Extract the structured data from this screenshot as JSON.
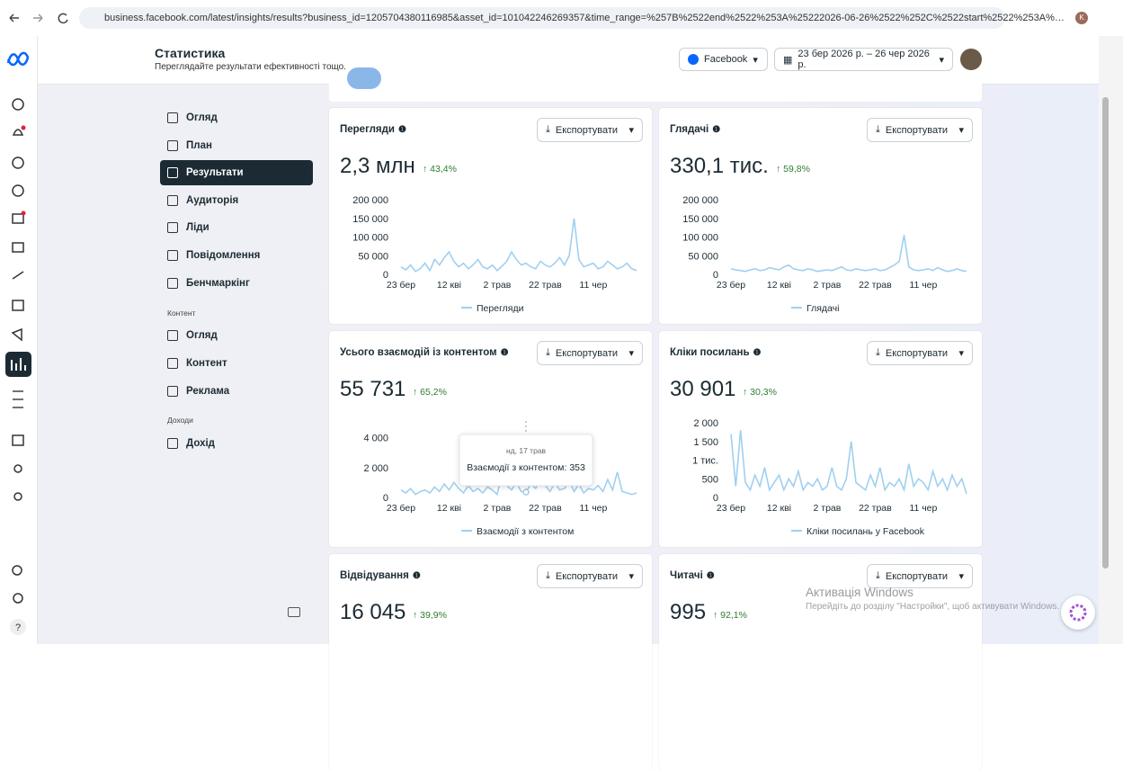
{
  "browser": {
    "url": "business.facebook.com/latest/insights/results?business_id=1205704380116985&asset_id=101042246269357&time_range=%257B%2522end%2522%253A%25222026-06-26%2522%252C%2522start%2522%253A%…",
    "profile": "K"
  },
  "header": {
    "title": "Статистика",
    "subtitle": "Переглядайте результати ефективності тощо.",
    "platform": "Facebook",
    "date_range": "23 бер 2026 р. – 26 чер 2026 р."
  },
  "nav": {
    "items": [
      "Огляд",
      "План",
      "Результати",
      "Аудиторія",
      "Ліди",
      "Повідомлення",
      "Бенчмаркінг"
    ],
    "content_section": "Контент",
    "content_items": [
      "Огляд",
      "Контент",
      "Реклама"
    ],
    "income_section": "Доходи",
    "income_items": [
      "Дохід"
    ]
  },
  "export_label": "Експортувати",
  "chart_data": [
    {
      "type": "line",
      "title": "Перегляди",
      "total": "2,3 млн",
      "change": "43,4%",
      "categories": [
        "23 бер",
        null,
        null,
        null,
        null,
        null,
        null,
        null,
        null,
        null,
        "12 кві",
        null,
        null,
        null,
        null,
        null,
        null,
        null,
        null,
        null,
        "2 трав",
        null,
        null,
        null,
        null,
        null,
        null,
        null,
        null,
        null,
        "22 трав",
        null,
        null,
        null,
        null,
        null,
        null,
        null,
        null,
        null,
        "11 чер",
        null,
        null,
        null,
        null,
        null,
        null,
        null,
        null,
        null
      ],
      "ylim": [
        0,
        200000
      ],
      "yticks": [
        0,
        {
          "value": 50000,
          "label": "50 000"
        },
        {
          "value": 100000,
          "label": "100 000"
        },
        {
          "value": 150000,
          "label": "150 000"
        },
        {
          "value": 200000,
          "label": "200 000"
        }
      ],
      "series": [
        {
          "name": "Перегляди",
          "color": "#9fd0f0",
          "values": [
            20000,
            12000,
            25000,
            8000,
            15000,
            30000,
            10000,
            40000,
            25000,
            45000,
            60000,
            35000,
            20000,
            30000,
            15000,
            25000,
            40000,
            20000,
            15000,
            25000,
            10000,
            22000,
            35000,
            60000,
            40000,
            25000,
            30000,
            20000,
            15000,
            35000,
            25000,
            20000,
            30000,
            45000,
            25000,
            50000,
            150000,
            40000,
            20000,
            25000,
            30000,
            15000,
            20000,
            35000,
            25000,
            15000,
            20000,
            30000,
            15000,
            10000
          ]
        }
      ]
    },
    {
      "type": "line",
      "title": "Глядачі",
      "total": "330,1 тис.",
      "change": "59,8%",
      "categories": [
        "23 бер",
        null,
        null,
        null,
        null,
        null,
        null,
        null,
        null,
        null,
        "12 кві",
        null,
        null,
        null,
        null,
        null,
        null,
        null,
        null,
        null,
        "2 трав",
        null,
        null,
        null,
        null,
        null,
        null,
        null,
        null,
        null,
        "22 трав",
        null,
        null,
        null,
        null,
        null,
        null,
        null,
        null,
        null,
        "11 чер",
        null,
        null,
        null,
        null,
        null,
        null,
        null,
        null,
        null
      ],
      "ylim": [
        0,
        200000
      ],
      "yticks": [
        0,
        {
          "value": 50000,
          "label": "50 000"
        },
        {
          "value": 100000,
          "label": "100 000"
        },
        {
          "value": 150000,
          "label": "150 000"
        },
        {
          "value": 200000,
          "label": "200 000"
        }
      ],
      "series": [
        {
          "name": "Глядачі",
          "color": "#9fd0f0",
          "values": [
            15000,
            12000,
            10000,
            8000,
            12000,
            15000,
            10000,
            12000,
            18000,
            15000,
            12000,
            20000,
            25000,
            15000,
            12000,
            10000,
            15000,
            12000,
            8000,
            10000,
            12000,
            10000,
            15000,
            20000,
            12000,
            10000,
            15000,
            12000,
            10000,
            12000,
            15000,
            10000,
            12000,
            18000,
            25000,
            35000,
            105000,
            20000,
            12000,
            10000,
            12000,
            15000,
            10000,
            18000,
            12000,
            8000,
            10000,
            15000,
            10000,
            8000
          ]
        }
      ]
    },
    {
      "type": "line",
      "title": "Усього взаємодій із контентом",
      "total": "55 731",
      "change": "65,2%",
      "categories": [
        "23 бер",
        null,
        null,
        null,
        null,
        null,
        null,
        null,
        null,
        null,
        "12 кві",
        null,
        null,
        null,
        null,
        null,
        null,
        null,
        null,
        null,
        "2 трав",
        null,
        null,
        null,
        null,
        null,
        null,
        null,
        null,
        null,
        "22 трав",
        null,
        null,
        null,
        null,
        null,
        null,
        null,
        null,
        null,
        "11 чер",
        null,
        null,
        null,
        null,
        null,
        null,
        null,
        null,
        null
      ],
      "ylim": [
        0,
        5000
      ],
      "yticks": [
        0,
        {
          "value": 2000,
          "label": "2 000"
        },
        {
          "value": 4000,
          "label": "4 000"
        }
      ],
      "series": [
        {
          "name": "Взаємодії з контентом",
          "color": "#9fd0f0",
          "values": [
            500,
            300,
            600,
            200,
            400,
            500,
            300,
            700,
            400,
            900,
            500,
            1000,
            600,
            300,
            800,
            400,
            600,
            300,
            700,
            500,
            200,
            1600,
            800,
            500,
            1000,
            400,
            353,
            900,
            600,
            1200,
            800,
            400,
            1000,
            500,
            600,
            1100,
            400,
            900,
            300,
            600,
            500,
            800,
            400,
            1200,
            500,
            1700,
            400,
            300,
            200,
            300
          ]
        }
      ],
      "tooltip": {
        "index": 26,
        "date": "нд, 17 трав",
        "text": "Взаємодії з контентом: 353"
      }
    },
    {
      "type": "line",
      "title": "Кліки посилань",
      "total": "30 901",
      "change": "30,3%",
      "categories": [
        "23 бер",
        null,
        null,
        null,
        null,
        null,
        null,
        null,
        null,
        null,
        "12 кві",
        null,
        null,
        null,
        null,
        null,
        null,
        null,
        null,
        null,
        "2 трав",
        null,
        null,
        null,
        null,
        null,
        null,
        null,
        null,
        null,
        "22 трав",
        null,
        null,
        null,
        null,
        null,
        null,
        null,
        null,
        null,
        "11 чер",
        null,
        null,
        null,
        null,
        null,
        null,
        null,
        null,
        null
      ],
      "ylim": [
        0,
        2000
      ],
      "yticks": [
        0,
        500,
        {
          "value": 1000,
          "label": "1 тис."
        },
        {
          "value": 1500,
          "label": "1 500"
        },
        {
          "value": 2000,
          "label": "2 000"
        }
      ],
      "series": [
        {
          "name": "Кліки посилань у Facebook",
          "color": "#9fd0f0",
          "values": [
            1700,
            300,
            1800,
            400,
            200,
            600,
            300,
            800,
            200,
            400,
            600,
            200,
            500,
            300,
            700,
            200,
            400,
            300,
            500,
            200,
            300,
            800,
            300,
            200,
            500,
            1500,
            400,
            300,
            200,
            600,
            300,
            800,
            200,
            400,
            300,
            500,
            200,
            900,
            300,
            500,
            400,
            200,
            700,
            300,
            500,
            200,
            600,
            300,
            500,
            100
          ]
        }
      ]
    }
  ],
  "more_cards": [
    {
      "title": "Відвідування",
      "total": "16 045",
      "change": "39,9%"
    },
    {
      "title": "Читачі",
      "total": "995",
      "change": "92,1%"
    }
  ],
  "watermark": {
    "title": "Активація Windows",
    "text": "Перейдіть до розділу \"Настройки\", щоб активувати Windows."
  }
}
